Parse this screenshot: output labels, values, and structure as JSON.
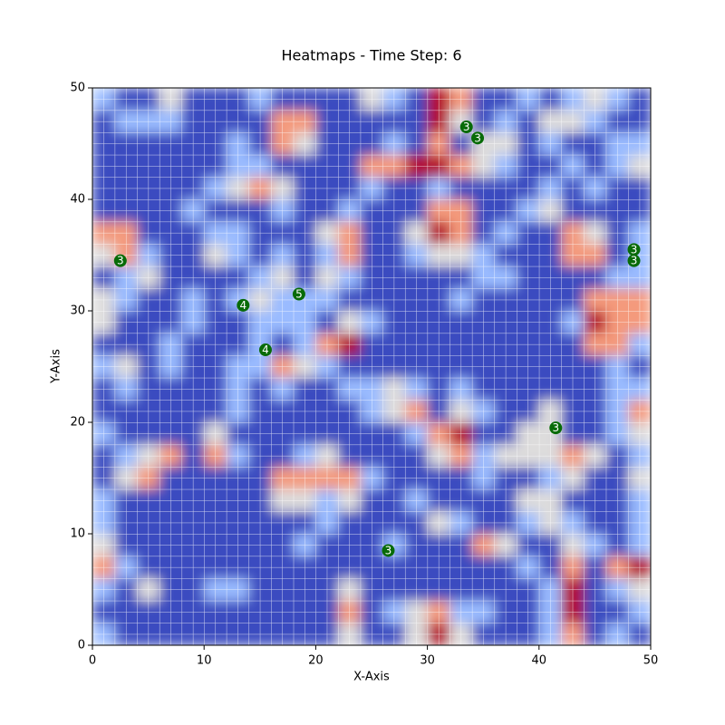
{
  "chart_data": {
    "type": "heatmap",
    "title": "Heatmaps - Time Step: 6",
    "x_label": "X-Axis",
    "y_label": "Y-Axis",
    "xlim": [
      0,
      50
    ],
    "ylim": [
      0,
      50
    ],
    "xticks": [
      0,
      10,
      20,
      30,
      40,
      50
    ],
    "yticks": [
      0,
      10,
      20,
      30,
      40,
      50
    ],
    "vlim": [
      0,
      4
    ],
    "colormap": [
      "#3b4cc0",
      "#9abbff",
      "#dddcdc",
      "#f49a7b",
      "#b40426"
    ],
    "z": [
      [
        1,
        0,
        0,
        2,
        0,
        0,
        0,
        1,
        0,
        0,
        0,
        0,
        2,
        1,
        0,
        4,
        3,
        0,
        0,
        1,
        0,
        1,
        2,
        1,
        0
      ],
      [
        0,
        1,
        1,
        1,
        0,
        0,
        0,
        0,
        3,
        3,
        0,
        0,
        0,
        0,
        0,
        4,
        2,
        0,
        1,
        0,
        2,
        2,
        1,
        0,
        0
      ],
      [
        0,
        0,
        0,
        0,
        0,
        0,
        1,
        0,
        3,
        2,
        0,
        0,
        0,
        1,
        0,
        3,
        0,
        2,
        2,
        0,
        1,
        0,
        0,
        1,
        1
      ],
      [
        0,
        0,
        0,
        0,
        0,
        0,
        1,
        1,
        0,
        0,
        0,
        0,
        3,
        3,
        4,
        4,
        3,
        2,
        1,
        0,
        0,
        1,
        0,
        1,
        2
      ],
      [
        0,
        0,
        0,
        0,
        0,
        1,
        2,
        3,
        2,
        0,
        0,
        0,
        1,
        0,
        0,
        1,
        0,
        0,
        0,
        0,
        1,
        0,
        1,
        0,
        0
      ],
      [
        0,
        0,
        0,
        0,
        1,
        0,
        0,
        0,
        1,
        0,
        0,
        1,
        0,
        0,
        0,
        3,
        3,
        0,
        0,
        1,
        2,
        0,
        0,
        0,
        0
      ],
      [
        3,
        3,
        0,
        0,
        0,
        1,
        1,
        0,
        0,
        0,
        2,
        3,
        0,
        0,
        2,
        4,
        3,
        0,
        1,
        0,
        0,
        3,
        2,
        0,
        1
      ],
      [
        2,
        3,
        1,
        0,
        0,
        2,
        1,
        0,
        1,
        0,
        1,
        3,
        0,
        0,
        1,
        2,
        2,
        1,
        0,
        0,
        0,
        3,
        3,
        0,
        1
      ],
      [
        0,
        1,
        2,
        0,
        0,
        0,
        0,
        1,
        2,
        0,
        2,
        1,
        0,
        0,
        0,
        0,
        0,
        1,
        1,
        0,
        0,
        0,
        0,
        1,
        1
      ],
      [
        2,
        1,
        0,
        0,
        1,
        0,
        1,
        2,
        1,
        1,
        1,
        0,
        0,
        0,
        0,
        0,
        1,
        0,
        0,
        0,
        0,
        0,
        3,
        3,
        3
      ],
      [
        2,
        0,
        0,
        0,
        1,
        0,
        0,
        1,
        1,
        1,
        0,
        2,
        1,
        0,
        0,
        0,
        0,
        0,
        0,
        0,
        0,
        1,
        4,
        3,
        3
      ],
      [
        0,
        0,
        0,
        1,
        0,
        0,
        0,
        1,
        0,
        1,
        3,
        4,
        0,
        0,
        0,
        0,
        0,
        0,
        0,
        0,
        0,
        0,
        3,
        3,
        1
      ],
      [
        1,
        2,
        0,
        1,
        0,
        0,
        1,
        1,
        3,
        2,
        1,
        0,
        0,
        0,
        0,
        0,
        0,
        0,
        0,
        0,
        0,
        0,
        0,
        1,
        0
      ],
      [
        0,
        1,
        0,
        0,
        0,
        0,
        1,
        0,
        1,
        0,
        0,
        1,
        1,
        2,
        1,
        0,
        1,
        0,
        0,
        0,
        0,
        0,
        0,
        1,
        1
      ],
      [
        0,
        0,
        0,
        0,
        0,
        0,
        1,
        0,
        0,
        0,
        0,
        0,
        1,
        2,
        3,
        0,
        2,
        1,
        0,
        0,
        2,
        0,
        0,
        1,
        3
      ],
      [
        1,
        0,
        0,
        0,
        0,
        2,
        0,
        0,
        0,
        0,
        0,
        0,
        0,
        0,
        1,
        3,
        4,
        0,
        0,
        2,
        2,
        0,
        0,
        1,
        2
      ],
      [
        0,
        1,
        2,
        3,
        0,
        3,
        1,
        0,
        0,
        1,
        2,
        0,
        0,
        0,
        0,
        2,
        3,
        1,
        2,
        2,
        2,
        3,
        2,
        0,
        1
      ],
      [
        0,
        2,
        3,
        0,
        0,
        0,
        0,
        0,
        3,
        3,
        3,
        3,
        1,
        0,
        0,
        0,
        0,
        1,
        0,
        0,
        1,
        2,
        0,
        0,
        2
      ],
      [
        1,
        0,
        0,
        0,
        0,
        0,
        0,
        0,
        2,
        2,
        1,
        2,
        0,
        0,
        1,
        0,
        0,
        0,
        0,
        2,
        2,
        0,
        0,
        0,
        1
      ],
      [
        1,
        0,
        0,
        0,
        0,
        0,
        0,
        0,
        0,
        0,
        1,
        0,
        0,
        0,
        0,
        2,
        1,
        0,
        0,
        1,
        2,
        1,
        0,
        0,
        1
      ],
      [
        2,
        0,
        0,
        0,
        0,
        0,
        0,
        0,
        0,
        1,
        0,
        0,
        0,
        1,
        0,
        0,
        0,
        3,
        2,
        0,
        0,
        2,
        1,
        0,
        1
      ],
      [
        3,
        1,
        0,
        0,
        0,
        0,
        0,
        0,
        0,
        0,
        0,
        0,
        0,
        0,
        0,
        0,
        0,
        0,
        0,
        1,
        0,
        3,
        0,
        3,
        4
      ],
      [
        1,
        0,
        2,
        0,
        0,
        1,
        1,
        0,
        0,
        0,
        0,
        2,
        0,
        0,
        0,
        0,
        0,
        0,
        0,
        0,
        1,
        4,
        0,
        1,
        2
      ],
      [
        0,
        0,
        0,
        0,
        0,
        0,
        0,
        0,
        0,
        0,
        0,
        3,
        0,
        1,
        2,
        3,
        1,
        1,
        0,
        0,
        1,
        4,
        0,
        0,
        1
      ],
      [
        1,
        0,
        0,
        0,
        0,
        0,
        0,
        0,
        0,
        0,
        0,
        2,
        0,
        0,
        2,
        4,
        2,
        0,
        0,
        0,
        1,
        3,
        0,
        1,
        0
      ]
    ],
    "points": {
      "color": "#086b08",
      "x": [
        33.5,
        34.5,
        2.5,
        13.5,
        18.5,
        15.5,
        48.5,
        48.5,
        41.5,
        26.5
      ],
      "y": [
        46.5,
        45.5,
        34.5,
        30.5,
        31.5,
        26.5,
        35.5,
        34.5,
        19.5,
        8.5
      ],
      "values": [
        3,
        3,
        3,
        4,
        5,
        4,
        3,
        3,
        3,
        3
      ]
    }
  }
}
